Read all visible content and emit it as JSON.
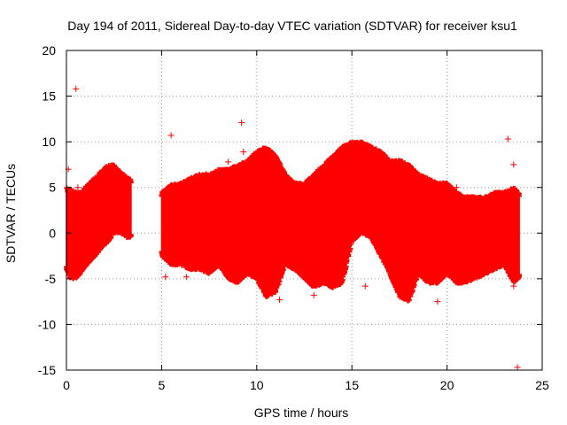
{
  "chart_data": {
    "type": "scatter",
    "title": "Day 194 of 2011, Sidereal Day-to-day VTEC variation (SDTVAR) for receiver ksu1",
    "xlabel": "GPS time / hours",
    "ylabel": "SDTVAR / TECUs",
    "xlim": [
      0,
      25
    ],
    "ylim": [
      -15,
      20
    ],
    "xticks": [
      0,
      5,
      10,
      15,
      20,
      25
    ],
    "yticks": [
      -15,
      -10,
      -5,
      0,
      5,
      10,
      15,
      20
    ],
    "xtick_labels": [
      "0",
      "5",
      "10",
      "15",
      "20",
      "25"
    ],
    "ytick_labels": [
      "-15",
      "-10",
      "-5",
      "0",
      "5",
      "10",
      "15",
      "20"
    ],
    "grid": true,
    "grid_style": "dotted",
    "marker": "+",
    "color": "#ff0000",
    "series": [
      {
        "name": "SDTVAR",
        "envelope": {
          "description": "approximate upper and lower bounds of the dense point cloud",
          "x": [
            0,
            0.2,
            0.5,
            0.8,
            1.0,
            1.3,
            1.6,
            1.9,
            2.2,
            2.5,
            2.8,
            3.1,
            3.4,
            3.5,
            4.8,
            5.0,
            5.5,
            6.0,
            6.5,
            7.0,
            7.5,
            8.0,
            8.5,
            9.0,
            9.5,
            10.0,
            10.5,
            11.0,
            11.5,
            12.0,
            12.5,
            13.0,
            13.5,
            14.0,
            14.5,
            15.0,
            15.5,
            16.0,
            16.5,
            17.0,
            17.5,
            18.0,
            18.5,
            19.0,
            19.5,
            20.0,
            20.5,
            21.0,
            21.5,
            22.0,
            22.5,
            23.0,
            23.5,
            23.8
          ],
          "upper": [
            4.6,
            4.3,
            4.0,
            4.0,
            4.6,
            5.2,
            5.8,
            6.5,
            7.0,
            7.0,
            6.3,
            5.8,
            5.5,
            null,
            null,
            4.0,
            4.8,
            5.0,
            5.5,
            6.0,
            6.0,
            6.5,
            6.5,
            7.0,
            7.5,
            8.5,
            9.0,
            8.0,
            6.0,
            5.0,
            5.0,
            6.0,
            7.0,
            8.0,
            9.0,
            9.5,
            9.5,
            9.0,
            8.5,
            7.5,
            7.5,
            7.0,
            6.0,
            5.5,
            5.0,
            5.0,
            4.0,
            3.5,
            3.5,
            3.5,
            4.0,
            4.0,
            4.5,
            4.0
          ],
          "lower": [
            -3.5,
            -4.5,
            -4.5,
            -3.8,
            -3.2,
            -2.5,
            -1.8,
            -1.0,
            -0.5,
            0.5,
            0.5,
            0.0,
            0.0,
            null,
            null,
            -2.0,
            -3.0,
            -3.0,
            -3.5,
            -3.5,
            -4.0,
            -3.0,
            -4.5,
            -5.0,
            -4.0,
            -4.5,
            -6.5,
            -6.0,
            -3.0,
            -3.5,
            -4.5,
            -5.5,
            -5.0,
            -5.5,
            -5.0,
            -0.5,
            0.5,
            0.0,
            -2.0,
            -4.0,
            -6.5,
            -7.0,
            -4.0,
            -5.0,
            -5.0,
            -4.0,
            -5.0,
            -5.0,
            -4.5,
            -4.0,
            -3.5,
            -3.0,
            -5.0,
            -4.5
          ]
        },
        "outliers": [
          {
            "x": 0.1,
            "y": 7.0
          },
          {
            "x": 0.5,
            "y": 15.8
          },
          {
            "x": 0.6,
            "y": 5.0
          },
          {
            "x": 5.5,
            "y": 10.7
          },
          {
            "x": 5.2,
            "y": -4.8
          },
          {
            "x": 6.3,
            "y": -4.8
          },
          {
            "x": 9.2,
            "y": 12.1
          },
          {
            "x": 9.3,
            "y": 8.9
          },
          {
            "x": 8.5,
            "y": 7.8
          },
          {
            "x": 11.2,
            "y": -7.3
          },
          {
            "x": 13.0,
            "y": -6.8
          },
          {
            "x": 15.7,
            "y": -5.8
          },
          {
            "x": 17.8,
            "y": 7.2
          },
          {
            "x": 19.5,
            "y": -7.5
          },
          {
            "x": 20.5,
            "y": 5.0
          },
          {
            "x": 23.2,
            "y": 10.3
          },
          {
            "x": 23.5,
            "y": 7.5
          },
          {
            "x": 23.5,
            "y": -5.8
          },
          {
            "x": 23.7,
            "y": -14.7
          }
        ]
      }
    ]
  }
}
